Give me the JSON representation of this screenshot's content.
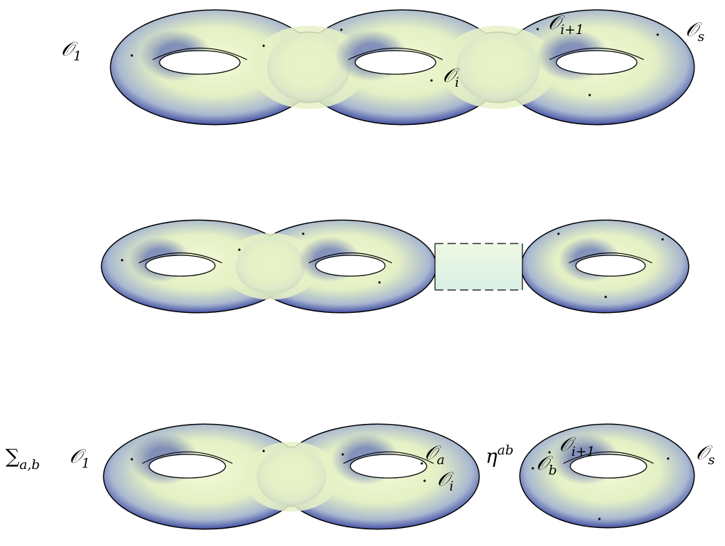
{
  "top": {
    "labels": [
      {
        "base": "𝒪",
        "sub": "1"
      },
      {
        "base": "𝒪",
        "sub": "i+1"
      },
      {
        "base": "𝒪",
        "sub": "s"
      },
      {
        "base": "𝒪",
        "sub": "i"
      }
    ]
  },
  "bottom": {
    "sum": {
      "base": "∑",
      "sub": "a,b"
    },
    "propagator": {
      "base": "η",
      "sup": "ab"
    },
    "labels": [
      {
        "base": "𝒪",
        "sub": "1"
      },
      {
        "base": "𝒪",
        "sub": "a"
      },
      {
        "base": "𝒪",
        "sub": "i"
      },
      {
        "base": "𝒪",
        "sub": "i+1"
      },
      {
        "base": "𝒪",
        "sub": "b"
      },
      {
        "base": "𝒪",
        "sub": "s"
      }
    ]
  }
}
